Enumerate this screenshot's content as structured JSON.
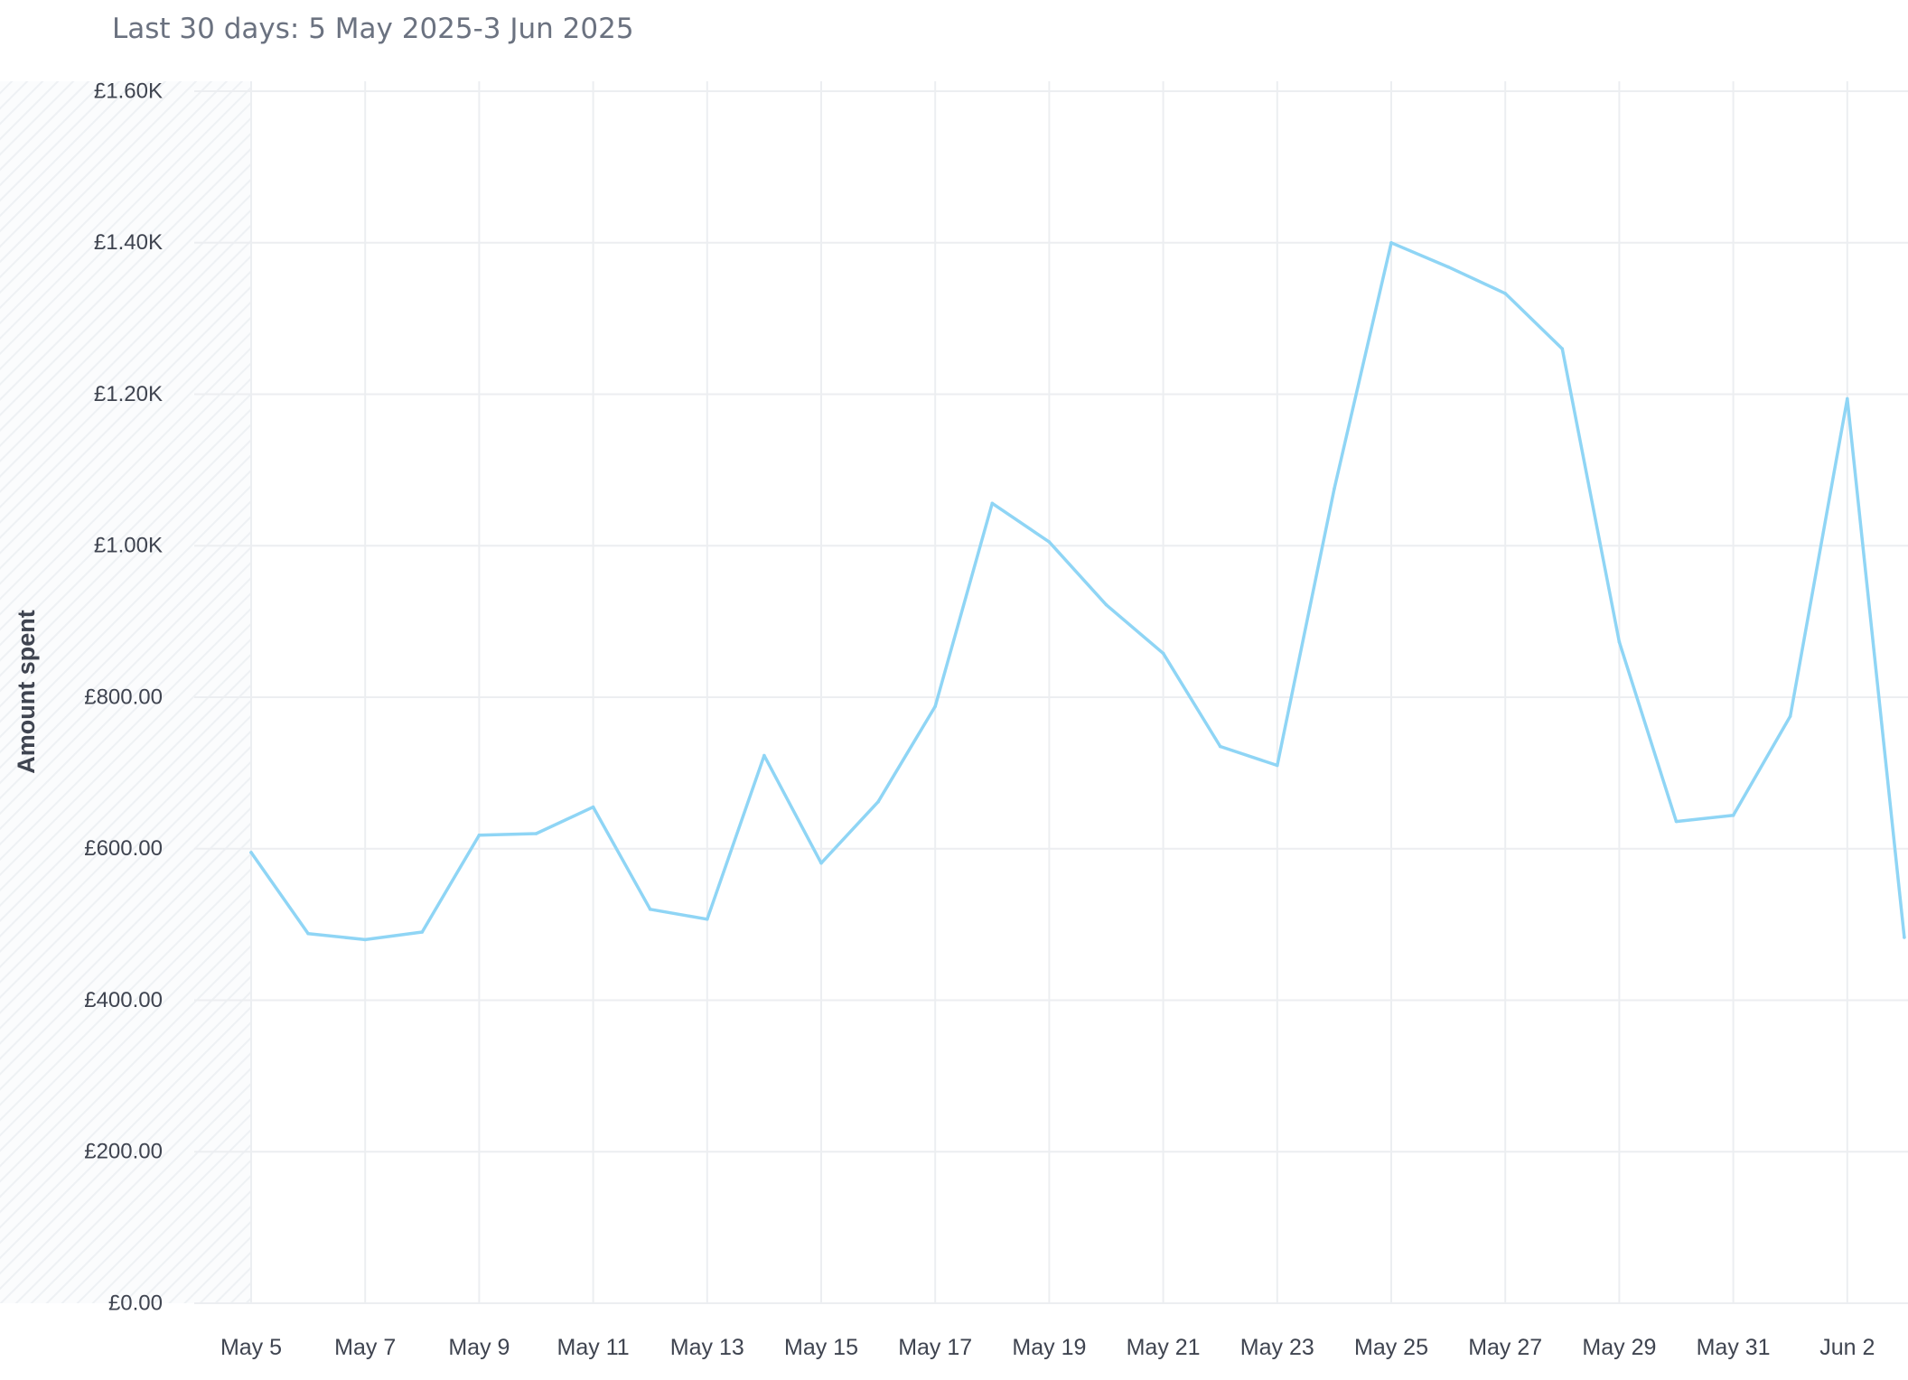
{
  "header": {
    "date_range": "Last 30 days: 5 May 2025-3 Jun 2025"
  },
  "chart_data": {
    "type": "line",
    "title": "",
    "xlabel": "",
    "ylabel": "Amount spent",
    "ylim": [
      0,
      1600
    ],
    "yticks": [
      {
        "value": 0,
        "label": "£0.00"
      },
      {
        "value": 200,
        "label": "£200.00"
      },
      {
        "value": 400,
        "label": "£400.00"
      },
      {
        "value": 600,
        "label": "£600.00"
      },
      {
        "value": 800,
        "label": "£800.00"
      },
      {
        "value": 1000,
        "label": "£1.00K"
      },
      {
        "value": 1200,
        "label": "£1.20K"
      },
      {
        "value": 1400,
        "label": "£1.40K"
      },
      {
        "value": 1600,
        "label": "£1.60K"
      }
    ],
    "xticks": [
      {
        "index": 0,
        "label": "May 5"
      },
      {
        "index": 2,
        "label": "May 7"
      },
      {
        "index": 4,
        "label": "May 9"
      },
      {
        "index": 6,
        "label": "May 11"
      },
      {
        "index": 8,
        "label": "May 13"
      },
      {
        "index": 10,
        "label": "May 15"
      },
      {
        "index": 12,
        "label": "May 17"
      },
      {
        "index": 14,
        "label": "May 19"
      },
      {
        "index": 16,
        "label": "May 21"
      },
      {
        "index": 18,
        "label": "May 23"
      },
      {
        "index": 20,
        "label": "May 25"
      },
      {
        "index": 22,
        "label": "May 27"
      },
      {
        "index": 24,
        "label": "May 29"
      },
      {
        "index": 26,
        "label": "May 31"
      },
      {
        "index": 28,
        "label": "Jun 2"
      }
    ],
    "grid": true,
    "color": "#8fd5f5",
    "series": [
      {
        "name": "",
        "x": [
          "May 5",
          "May 6",
          "May 7",
          "May 8",
          "May 9",
          "May 10",
          "May 11",
          "May 12",
          "May 13",
          "May 14",
          "May 15",
          "May 16",
          "May 17",
          "May 18",
          "May 19",
          "May 20",
          "May 21",
          "May 22",
          "May 23",
          "May 24",
          "May 25",
          "May 26",
          "May 27",
          "May 28",
          "May 29",
          "May 30",
          "May 31",
          "Jun 1",
          "Jun 2",
          "Jun 3"
        ],
        "values": [
          595,
          488,
          480,
          490,
          618,
          620,
          655,
          520,
          507,
          723,
          581,
          662,
          788,
          1056,
          1005,
          922,
          858,
          735,
          710,
          1075,
          1400,
          1368,
          1333,
          1260,
          873,
          636,
          644,
          775,
          1194,
          483
        ]
      }
    ]
  }
}
